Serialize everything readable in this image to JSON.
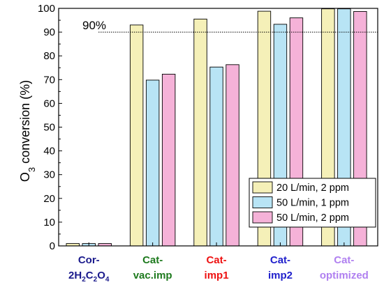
{
  "chart_data": {
    "type": "bar",
    "ylabel": "O₃ conversion (%)",
    "ylabel_parts": {
      "prefix": "O",
      "subscript": "3",
      "suffix": " conversion (%)"
    },
    "ylim": [
      0,
      100
    ],
    "yticks": [
      "0",
      "10",
      "20",
      "30",
      "40",
      "50",
      "60",
      "70",
      "80",
      "90",
      "100"
    ],
    "grid": false,
    "legend_position": "bottom-right",
    "categories": [
      {
        "lines": [
          [
            {
              "t": "Cor-"
            }
          ],
          [
            {
              "t": "2H"
            },
            {
              "t": "2",
              "sub": true
            },
            {
              "t": "C"
            },
            {
              "t": "2",
              "sub": true
            },
            {
              "t": "O"
            },
            {
              "t": "4",
              "sub": true
            }
          ]
        ],
        "color": "#1a1a8c"
      },
      {
        "lines": [
          [
            {
              "t": "Cat-"
            }
          ],
          [
            {
              "t": "vac.imp"
            }
          ]
        ],
        "color": "#1e7a1e"
      },
      {
        "lines": [
          [
            {
              "t": "Cat-"
            }
          ],
          [
            {
              "t": "imp1"
            }
          ]
        ],
        "color": "#ee1111"
      },
      {
        "lines": [
          [
            {
              "t": "Cat-"
            }
          ],
          [
            {
              "t": "imp2"
            }
          ]
        ],
        "color": "#2020cc"
      },
      {
        "lines": [
          [
            {
              "t": "Cat-"
            }
          ],
          [
            {
              "t": "optimized"
            }
          ]
        ],
        "color": "#b080f0"
      }
    ],
    "series": [
      {
        "name": "20 L/min, 2 ppm",
        "color": "#f5f0b8",
        "values": [
          1,
          93,
          95.5,
          98.8,
          99.8
        ]
      },
      {
        "name": "50 L/min, 1 ppm",
        "color": "#b8e4f5",
        "values": [
          1,
          69.8,
          75.3,
          93.3,
          99.8
        ]
      },
      {
        "name": "50 L/min, 2 ppm",
        "color": "#f5b2d8",
        "values": [
          1,
          72.3,
          76.3,
          96,
          98.7
        ]
      }
    ],
    "reference_line": {
      "value": 90,
      "label": "90%"
    }
  }
}
